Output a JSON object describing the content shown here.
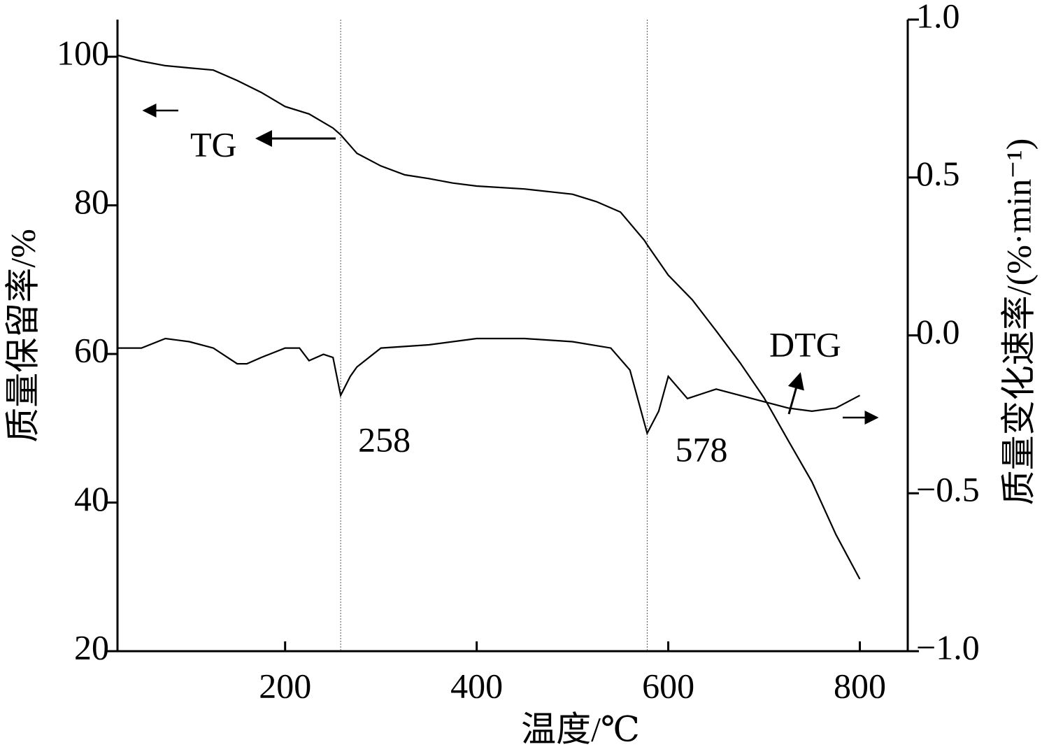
{
  "chart_data": {
    "type": "line",
    "x_label": "温度/℃",
    "y_label": "质量保留率/%",
    "y2_label": "质量变化速率/(%·min⁻¹)",
    "annotations": [
      "TG",
      "DTG"
    ],
    "vlines": [
      258,
      578
    ],
    "xlim": [
      25,
      850
    ],
    "xticks": [
      200,
      400,
      600,
      800
    ],
    "ylim": [
      20,
      105
    ],
    "yticks": [
      20,
      40,
      60,
      80,
      100
    ],
    "y2lim": [
      -1,
      1
    ],
    "y2ticks": [
      {
        "value": -1,
        "label": "−1.0"
      },
      {
        "value": -0.5,
        "label": "−0.5"
      },
      {
        "value": 0,
        "label": "0.0"
      },
      {
        "value": 0.5,
        "label": "0.5"
      },
      {
        "value": 1,
        "label": "1.0"
      }
    ],
    "grid": false,
    "series": [
      {
        "name": "TG",
        "color": "#000000",
        "x": [
          25,
          50,
          75,
          100,
          125,
          150,
          175,
          200,
          225,
          250,
          258,
          275,
          300,
          325,
          350,
          375,
          400,
          450,
          500,
          525,
          550,
          575,
          578,
          600,
          625,
          650,
          675,
          700,
          725,
          750,
          775,
          800
        ],
        "values": [
          100.2,
          99.4,
          98.8,
          98.5,
          98.2,
          96.8,
          95.2,
          93.3,
          92.3,
          90.4,
          89.5,
          87.0,
          85.3,
          84.1,
          83.6,
          83.0,
          82.6,
          82.2,
          81.5,
          80.5,
          79.1,
          75.3,
          74.7,
          70.6,
          67.3,
          63.1,
          58.8,
          54.1,
          48.4,
          42.8,
          35.7,
          29.7
        ]
      },
      {
        "name": "DTG",
        "color": "#000000",
        "axis": "y2",
        "x": [
          25,
          50,
          75,
          100,
          125,
          150,
          160,
          175,
          200,
          215,
          225,
          240,
          250,
          258,
          268,
          275,
          300,
          350,
          400,
          450,
          500,
          540,
          560,
          578,
          590,
          600,
          620,
          650,
          675,
          700,
          725,
          750,
          775,
          800
        ],
        "values": [
          -0.04,
          -0.04,
          -0.01,
          -0.02,
          -0.04,
          -0.09,
          -0.09,
          -0.07,
          -0.04,
          -0.04,
          -0.08,
          -0.06,
          -0.07,
          -0.19,
          -0.13,
          -0.1,
          -0.04,
          -0.03,
          -0.01,
          -0.01,
          -0.02,
          -0.04,
          -0.11,
          -0.31,
          -0.24,
          -0.13,
          -0.2,
          -0.17,
          -0.19,
          -0.21,
          -0.23,
          -0.24,
          -0.23,
          -0.19
        ]
      }
    ]
  }
}
